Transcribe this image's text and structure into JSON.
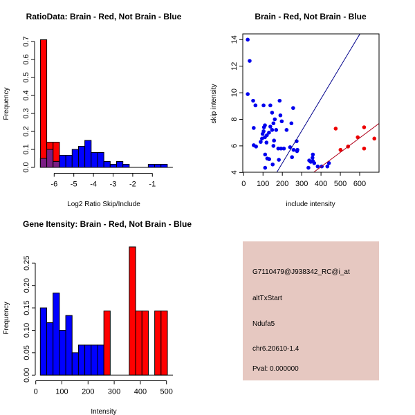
{
  "chart_data": [
    {
      "type": "bar",
      "title": "RatioData: Brain - Red, Not Brain - Blue",
      "xlabel": "Log2 Ratio Skip/Include",
      "ylabel": "Frequency",
      "xticks": [
        -6,
        -5,
        -4,
        -3,
        -2,
        -1
      ],
      "yticks": [
        0.0,
        0.1,
        0.2,
        0.3,
        0.4,
        0.5,
        0.6,
        0.7
      ],
      "ytick_decimals": 1,
      "ylim": [
        0,
        0.72
      ],
      "bin_start": -6.7,
      "bin_width": 0.323,
      "overlap_color": "#7b1f84",
      "series": [
        {
          "name": "Brain",
          "color": "#ff0000",
          "values": [
            0.71,
            0.14,
            0.14,
            0,
            0,
            0,
            0,
            0,
            0,
            0,
            0,
            0,
            0,
            0,
            0,
            0,
            0,
            0,
            0,
            0
          ]
        },
        {
          "name": "Not Brain",
          "color": "#0000ff",
          "values": [
            0.05,
            0.1,
            0.033,
            0.067,
            0.067,
            0.1,
            0.117,
            0.15,
            0.083,
            0.083,
            0.033,
            0.017,
            0.033,
            0.017,
            0,
            0,
            0,
            0.017,
            0.017,
            0.017
          ]
        }
      ]
    },
    {
      "type": "scatter",
      "title": "Brain - Red, Not Brain - Blue",
      "xlabel": "include intensity",
      "ylabel": "skip intensity",
      "xticks": [
        0,
        100,
        200,
        300,
        400,
        500,
        600
      ],
      "yticks": [
        4,
        6,
        8,
        10,
        12,
        14
      ],
      "xlim": [
        -5,
        700
      ],
      "ylim": [
        4,
        14.4
      ],
      "series": [
        {
          "name": "Not Brain",
          "color": "#0000ee",
          "points": [
            [
              21,
              14.0
            ],
            [
              31,
              12.4
            ],
            [
              21,
              9.9
            ],
            [
              49,
              9.4
            ],
            [
              61,
              9.05
            ],
            [
              103,
              9.05
            ],
            [
              138,
              9.05
            ],
            [
              186,
              9.4
            ],
            [
              256,
              8.85
            ],
            [
              147,
              8.5
            ],
            [
              190,
              8.3
            ],
            [
              161,
              8.0
            ],
            [
              197,
              7.85
            ],
            [
              154,
              7.7
            ],
            [
              247,
              7.7
            ],
            [
              52,
              7.35
            ],
            [
              110,
              7.55
            ],
            [
              105,
              7.4
            ],
            [
              138,
              7.45
            ],
            [
              147,
              7.2
            ],
            [
              168,
              7.2
            ],
            [
              222,
              7.2
            ],
            [
              103,
              7.1
            ],
            [
              131,
              7.0
            ],
            [
              98,
              6.9
            ],
            [
              120,
              6.8
            ],
            [
              110,
              6.65
            ],
            [
              95,
              6.55
            ],
            [
              157,
              6.4
            ],
            [
              88,
              6.3
            ],
            [
              118,
              6.25
            ],
            [
              274,
              6.35
            ],
            [
              52,
              6.05
            ],
            [
              64,
              5.95
            ],
            [
              154,
              6.0
            ],
            [
              179,
              5.8
            ],
            [
              193,
              5.8
            ],
            [
              208,
              5.8
            ],
            [
              240,
              5.9
            ],
            [
              258,
              5.7
            ],
            [
              278,
              5.7
            ],
            [
              276,
              5.6
            ],
            [
              111,
              5.35
            ],
            [
              122,
              5.05
            ],
            [
              132,
              5.0
            ],
            [
              250,
              5.15
            ],
            [
              182,
              4.95
            ],
            [
              150,
              4.6
            ],
            [
              111,
              4.35
            ],
            [
              335,
              4.35
            ],
            [
              339,
              4.9
            ],
            [
              347,
              4.8
            ],
            [
              358,
              4.85
            ],
            [
              356,
              5.1
            ],
            [
              358,
              5.35
            ],
            [
              365,
              4.7
            ],
            [
              383,
              4.45
            ],
            [
              404,
              4.45
            ],
            [
              433,
              4.45
            ],
            [
              441,
              4.7
            ]
          ],
          "fit": {
            "slope": 0.02424,
            "intercept": -0.145,
            "color": "#00008b"
          }
        },
        {
          "name": "Brain",
          "color": "#ee0000",
          "points": [
            [
              476,
              7.3
            ],
            [
              501,
              5.7
            ],
            [
              540,
              5.95
            ],
            [
              590,
              6.65
            ],
            [
              623,
              7.4
            ],
            [
              623,
              5.8
            ],
            [
              676,
              6.55
            ]
          ],
          "fit": {
            "slope": 0.01088,
            "intercept": 0.072,
            "color": "#b0001a"
          }
        }
      ]
    },
    {
      "type": "bar",
      "title": "Gene Itensity: Brain - Red, Not Brain - Blue",
      "xlabel": "Intensity",
      "ylabel": "Frequency",
      "xticks": [
        0,
        100,
        200,
        300,
        400,
        500
      ],
      "yticks": [
        0.0,
        0.05,
        0.1,
        0.15,
        0.2,
        0.25
      ],
      "ytick_decimals": 2,
      "ylim": [
        0,
        0.29
      ],
      "bin_start": 17.5,
      "bin_width": 24.3,
      "overlap_color": "#7b1f84",
      "series": [
        {
          "name": "Brain",
          "color": "#ff0000",
          "values": [
            0,
            0,
            0,
            0,
            0,
            0,
            0,
            0,
            0,
            0,
            0.143,
            0,
            0,
            0,
            0.286,
            0.143,
            0.143,
            0,
            0.143,
            0.143
          ]
        },
        {
          "name": "Not Brain",
          "color": "#0000ff",
          "values": [
            0.15,
            0.117,
            0.183,
            0.1,
            0.133,
            0.05,
            0.067,
            0.067,
            0.067,
            0.067,
            0,
            0,
            0,
            0,
            0,
            0,
            0,
            0,
            0,
            0
          ]
        }
      ]
    }
  ],
  "info_panel": {
    "background": "#e6c8c1",
    "probe_id": "G7110479@J938342_RC@i_at",
    "event_type": "altTxStart",
    "gene": "Ndufa5",
    "location": "chr6.20610-1.4",
    "pval": "Pval: 0.000000",
    "pval_color": "#aa0000"
  }
}
